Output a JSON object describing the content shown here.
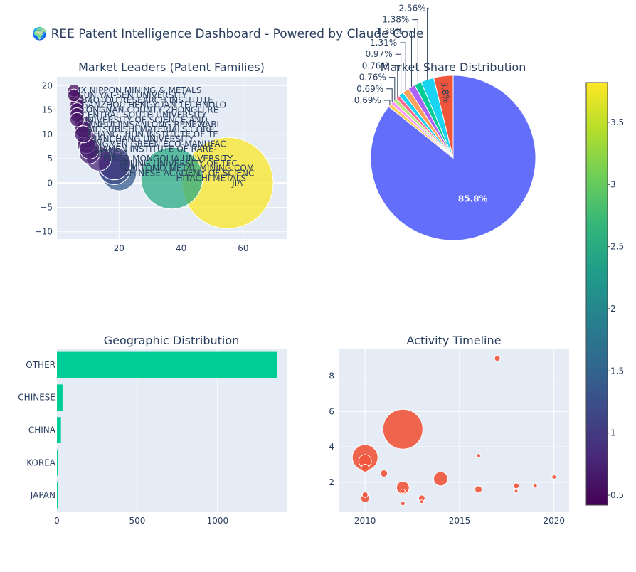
{
  "title": "🌍 REE Patent Intelligence Dashboard - Powered by Claude Code",
  "chart_data": [
    {
      "type": "scatter",
      "title": "Market Leaders (Patent Families)",
      "xlim": [
        0,
        74
      ],
      "ylim": [
        -11.5,
        21.8
      ],
      "xticks": [
        20,
        40,
        60
      ],
      "yticks": [
        -10,
        -5,
        0,
        5,
        10,
        15,
        20
      ],
      "points": [
        {
          "label": "JX NIPPON MINING & METALS",
          "x": 5.5,
          "y": 19,
          "value": 0.55
        },
        {
          "label": "SUN YAT-SEN UNIVERSITY",
          "x": 5.5,
          "y": 18,
          "value": 0.55
        },
        {
          "label": "BAOTOU RESEARCH INSTITUTE",
          "x": 6.5,
          "y": 17,
          "value": 0.6
        },
        {
          "label": "GANZHOU HENGYUAN TECHNOLO",
          "x": 6.5,
          "y": 16,
          "value": 0.6
        },
        {
          "label": "LONGNAN COUNTY ZHONGLI RE",
          "x": 6.5,
          "y": 15,
          "value": 0.6
        },
        {
          "label": "CENTRAL SOUTH UNIVERSITY",
          "x": 6.5,
          "y": 14,
          "value": 0.6
        },
        {
          "label": "UNIVERSITY OF SCIENCE AND",
          "x": 6.5,
          "y": 13,
          "value": 0.6
        },
        {
          "label": "ANHUI JINSANLONG RENEWABL",
          "x": 8.5,
          "y": 12,
          "value": 0.65
        },
        {
          "label": "MITSUBISHI MATERIALS CORP",
          "x": 8.5,
          "y": 11,
          "value": 0.65
        },
        {
          "label": "CHANGCHUN INSTITUTE OF TE",
          "x": 8.5,
          "y": 10,
          "value": 0.65
        },
        {
          "label": "NANCHANG UNIVERSITY",
          "x": 9.5,
          "y": 9,
          "value": 0.7
        },
        {
          "label": "JINGMEN GREEN ECO-MANUFAC",
          "x": 9.5,
          "y": 8,
          "value": 0.7
        },
        {
          "label": "XIAMEN INSTITUTE OF RARE-",
          "x": 10.5,
          "y": 7,
          "value": 0.7
        },
        {
          "label": "HITACHI",
          "x": 10.5,
          "y": 6,
          "value": 0.75
        },
        {
          "label": "INNER MONGOLIA UNIVERSITY",
          "x": 13.5,
          "y": 5,
          "value": 0.8
        },
        {
          "label": "BEIJING UNIVERSITY OF TEC",
          "x": 18.5,
          "y": 4,
          "value": 1.0
        },
        {
          "label": "SUMITOMO METAL MINING COM",
          "x": 18.5,
          "y": 3,
          "value": 1.2
        },
        {
          "label": "CHINESE ACADEMY OF SCIENC",
          "x": 20,
          "y": 2,
          "value": 1.4
        },
        {
          "label": "HITACHI METALS",
          "x": 37,
          "y": 1,
          "value": 2.5
        },
        {
          "label": "JIA",
          "x": 55,
          "y": 0,
          "value": 3.8
        }
      ]
    },
    {
      "type": "pie",
      "title": "Market Share Distribution",
      "center_label": "85.8%",
      "slices": [
        {
          "label": "85.8%",
          "value": 85.8,
          "color": "#636efa"
        },
        {
          "label": "0.69%",
          "value": 0.69,
          "color": "#fecb52"
        },
        {
          "label": "0.69%",
          "value": 0.69,
          "color": "#ff97ff"
        },
        {
          "label": "0.76%",
          "value": 0.76,
          "color": "#b6e880"
        },
        {
          "label": "0.76%",
          "value": 0.76,
          "color": "#ff6692"
        },
        {
          "label": "0.97%",
          "value": 0.97,
          "color": "#19d3f3"
        },
        {
          "label": "1.31%",
          "value": 1.31,
          "color": "#ffa15a"
        },
        {
          "label": "1.38%",
          "value": 1.38,
          "color": "#ab63fa"
        },
        {
          "label": "1.38%",
          "value": 1.38,
          "color": "#00cc96"
        },
        {
          "label": "2.56%",
          "value": 2.56,
          "color": "#19d3f3"
        },
        {
          "label": "3.8%",
          "value": 3.8,
          "color": "#ef553b"
        }
      ]
    },
    {
      "type": "bar",
      "orientation": "horizontal",
      "title": "Geographic Distribution",
      "categories": [
        "OTHER",
        "CHINESE",
        "CHINA",
        "KOREA",
        "JAPAN"
      ],
      "values": [
        1370,
        35,
        25,
        8,
        6
      ],
      "xlim": [
        0,
        1430
      ],
      "xticks": [
        0,
        500,
        1000
      ],
      "color": "#00cc96"
    },
    {
      "type": "scatter",
      "title": "Activity Timeline",
      "xlim": [
        2008.6,
        2020.8
      ],
      "ylim": [
        0.35,
        9.55
      ],
      "xticks": [
        2010,
        2015,
        2020
      ],
      "yticks": [
        2,
        4,
        6,
        8
      ],
      "color": "#ef553b",
      "points": [
        {
          "x": 2010,
          "y": 3.4,
          "size": 36
        },
        {
          "x": 2010,
          "y": 3.2,
          "size": 18
        },
        {
          "x": 2010,
          "y": 2.8,
          "size": 11
        },
        {
          "x": 2010,
          "y": 1.3,
          "size": 8
        },
        {
          "x": 2010,
          "y": 1.1,
          "size": 12
        },
        {
          "x": 2011,
          "y": 2.5,
          "size": 10
        },
        {
          "x": 2012,
          "y": 5.0,
          "size": 56
        },
        {
          "x": 2012,
          "y": 1.7,
          "size": 18
        },
        {
          "x": 2012,
          "y": 1.5,
          "size": 6
        },
        {
          "x": 2012,
          "y": 0.8,
          "size": 6
        },
        {
          "x": 2013,
          "y": 1.1,
          "size": 9
        },
        {
          "x": 2013,
          "y": 0.9,
          "size": 5
        },
        {
          "x": 2014,
          "y": 2.2,
          "size": 20
        },
        {
          "x": 2016,
          "y": 3.5,
          "size": 6
        },
        {
          "x": 2016,
          "y": 1.6,
          "size": 10
        },
        {
          "x": 2017,
          "y": 9.0,
          "size": 8
        },
        {
          "x": 2018,
          "y": 1.8,
          "size": 8
        },
        {
          "x": 2018,
          "y": 1.5,
          "size": 5
        },
        {
          "x": 2019,
          "y": 1.8,
          "size": 6
        },
        {
          "x": 2020,
          "y": 2.3,
          "size": 6
        }
      ]
    }
  ],
  "colorbar": {
    "ticks": [
      0.5,
      1,
      1.5,
      2,
      2.5,
      3,
      3.5
    ],
    "range": [
      0.42,
      3.82
    ],
    "stops": [
      "#440154",
      "#482878",
      "#3e4989",
      "#31688e",
      "#26828e",
      "#1f9e89",
      "#35b779",
      "#6ece58",
      "#b5de2b",
      "#fde725"
    ]
  }
}
